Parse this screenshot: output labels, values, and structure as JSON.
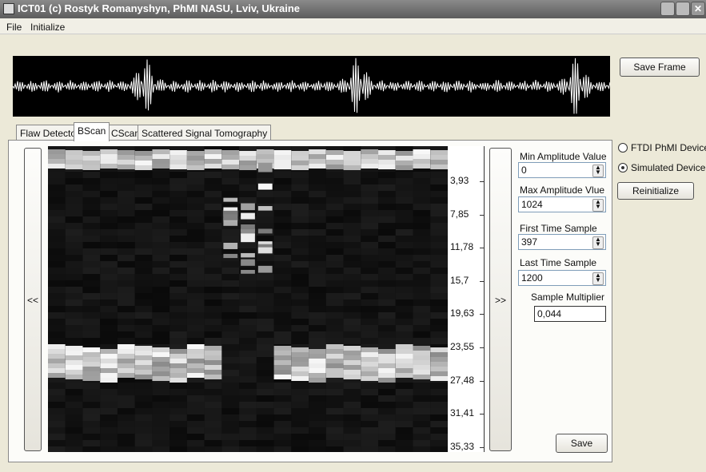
{
  "window": {
    "title": "ICT01 (c) Rostyk Romanyshyn, PhMI NASU, Lviv, Ukraine"
  },
  "menu": [
    "File",
    "Initialize"
  ],
  "save_frame": "Save Frame",
  "tabs": [
    "Flaw Detector",
    "BScan",
    "CScan",
    "Scattered Signal Tomography"
  ],
  "bscan": {
    "prev": "<<",
    "next": ">>",
    "axis_labels": [
      "3,93",
      "7,85",
      "11,78",
      "15,7",
      "19,63",
      "23,55",
      "27,48",
      "31,41",
      "35,33"
    ]
  },
  "settings": {
    "fields": [
      {
        "label": "Min Amplitude Value",
        "value": "0"
      },
      {
        "label": "Max Amplitude Vlue",
        "value": "1024"
      },
      {
        "label": "First Time Sample",
        "value": "397"
      },
      {
        "label": "Last Time Sample",
        "value": "1200"
      },
      {
        "label": "Sample Multiplier",
        "value": "0,044"
      }
    ],
    "save": "Save"
  },
  "device": {
    "options": [
      "FTDI PhMI Device",
      "Simulated Device"
    ],
    "reinitialize": "Reinitialize"
  }
}
